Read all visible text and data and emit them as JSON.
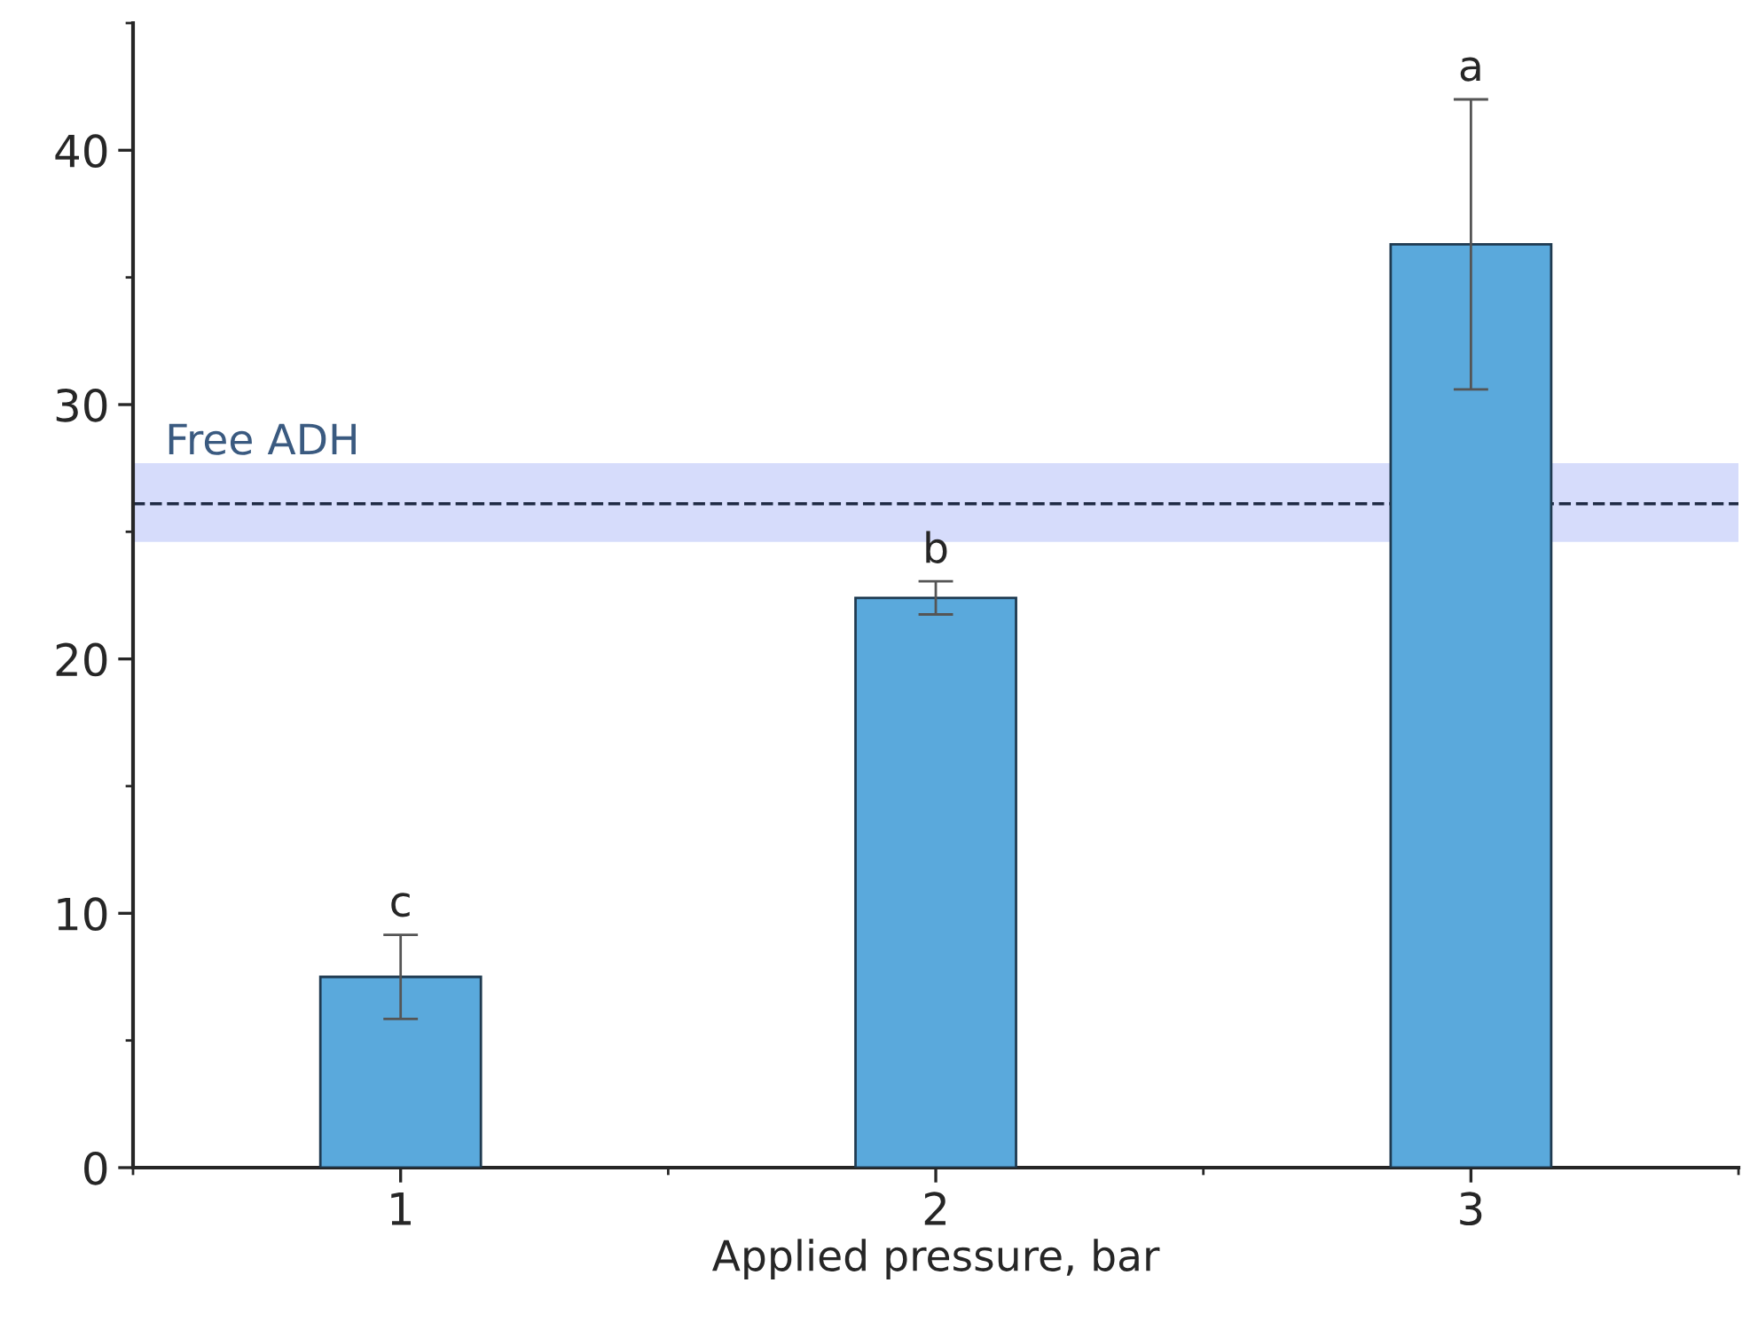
{
  "chart_data": {
    "type": "bar",
    "x": [
      1,
      2,
      3
    ],
    "values": [
      7.5,
      22.4,
      36.3
    ],
    "errors": [
      1.65,
      0.65,
      5.7
    ],
    "color": "#5aa9dc",
    "xlabel": "Applied pressure, bar",
    "xlim": [
      0.5,
      3.5
    ],
    "xticks": [
      1,
      2,
      3
    ],
    "ylim": [
      0,
      45
    ],
    "yticks": [
      0,
      10,
      20,
      30,
      40
    ],
    "ref_lines": [
      {
        "axis": "y",
        "value": 26.1,
        "label": "Free ADH",
        "color": "#1f2a44",
        "line_style": "dashed"
      }
    ],
    "bands": [
      {
        "axis": "y",
        "from": 24.6,
        "to": 27.7,
        "color": "#d6dcfb"
      }
    ],
    "annotations": [
      {
        "text": "c",
        "x": 1,
        "y": 9.15
      },
      {
        "text": "b",
        "x": 2,
        "y": 23.05
      },
      {
        "text": "a",
        "x": 3,
        "y": 42.0
      }
    ],
    "grid": false,
    "legend": false
  }
}
